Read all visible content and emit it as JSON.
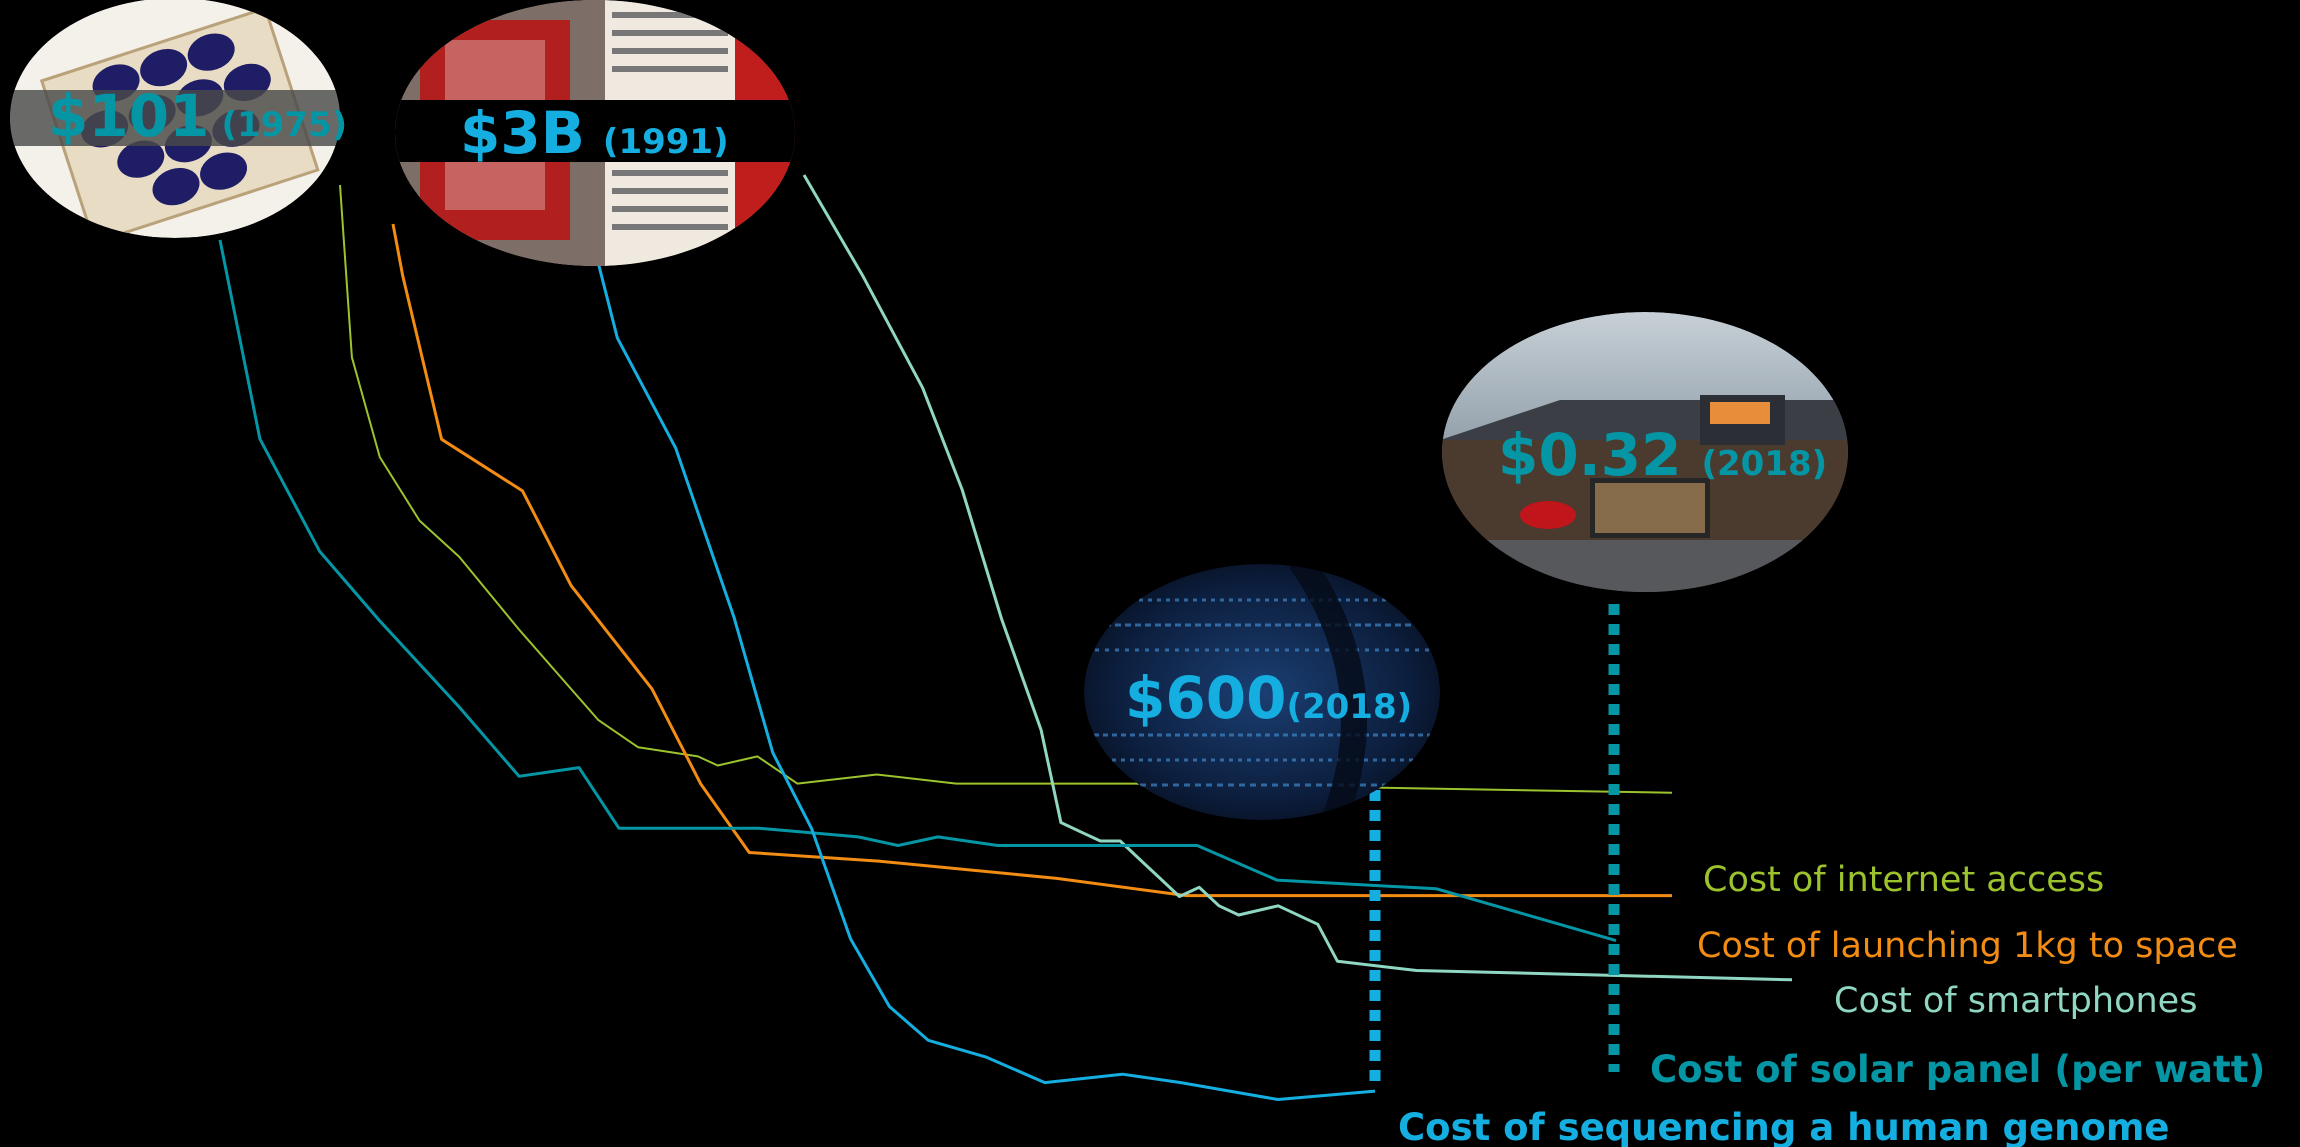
{
  "colors": {
    "internet": "#9cc32d",
    "launch": "#f28c13",
    "smartphone": "#8fd7c2",
    "solar": "#0596a6",
    "genome": "#15aee0",
    "background": "#000000"
  },
  "chart_data": {
    "type": "line",
    "title": "",
    "xlabel": "",
    "ylabel": "",
    "grid": false,
    "axes_shown": false,
    "note": "No axes or ticks are printed; values are relative cost levels as drawn (100 = starting level, 0 = bottom).",
    "series": [
      {
        "name": "Cost of internet access",
        "points": [
          [
            0,
            100
          ],
          [
            0.6,
            81
          ],
          [
            2,
            70
          ],
          [
            4,
            63
          ],
          [
            6,
            59
          ],
          [
            9,
            51
          ],
          [
            13,
            41
          ],
          [
            15,
            38
          ],
          [
            18,
            37
          ],
          [
            19,
            36
          ],
          [
            21,
            37
          ],
          [
            23,
            34
          ],
          [
            27,
            35
          ],
          [
            31,
            34
          ],
          [
            40,
            34
          ],
          [
            67,
            33
          ]
        ]
      },
      {
        "name": "Cost of launching 1kg to space",
        "points": [
          [
            0,
            100
          ],
          [
            0.6,
            94
          ],
          [
            3,
            75
          ],
          [
            8,
            69
          ],
          [
            11,
            58
          ],
          [
            16,
            46
          ],
          [
            19,
            35
          ],
          [
            22,
            27
          ],
          [
            30,
            26
          ],
          [
            41,
            24
          ],
          [
            49,
            22
          ],
          [
            59,
            22
          ],
          [
            79,
            22
          ]
        ]
      },
      {
        "name": "Cost of smartphones",
        "points": [
          [
            0,
            100
          ],
          [
            3,
            89
          ],
          [
            6,
            77
          ],
          [
            8,
            66
          ],
          [
            10,
            52
          ],
          [
            12,
            40
          ],
          [
            13,
            30
          ],
          [
            14,
            29
          ],
          [
            15,
            28
          ],
          [
            16,
            28
          ],
          [
            17,
            26
          ],
          [
            18,
            24
          ],
          [
            19,
            22
          ],
          [
            20,
            23
          ],
          [
            21,
            21
          ],
          [
            22,
            20
          ],
          [
            24,
            21
          ],
          [
            26,
            19
          ],
          [
            27,
            15
          ],
          [
            31,
            14
          ],
          [
            50,
            13
          ]
        ]
      },
      {
        "name": "Cost of solar panel (per watt)",
        "points": [
          [
            0,
            100
          ],
          [
            2,
            77
          ],
          [
            5,
            64
          ],
          [
            8,
            56
          ],
          [
            12,
            46
          ],
          [
            15,
            38
          ],
          [
            18,
            39
          ],
          [
            20,
            32
          ],
          [
            27,
            32
          ],
          [
            32,
            31
          ],
          [
            34,
            30
          ],
          [
            36,
            31
          ],
          [
            39,
            30
          ],
          [
            49,
            30
          ],
          [
            53,
            26
          ],
          [
            61,
            25
          ],
          [
            70,
            19
          ]
        ]
      },
      {
        "name": "Cost of sequencing a human genome",
        "points": [
          [
            0,
            100
          ],
          [
            1,
            91
          ],
          [
            4,
            78
          ],
          [
            7,
            58
          ],
          [
            9,
            42
          ],
          [
            11,
            33
          ],
          [
            13,
            20
          ],
          [
            15,
            12
          ],
          [
            17,
            8
          ],
          [
            20,
            6
          ],
          [
            23,
            3
          ],
          [
            27,
            4
          ],
          [
            30,
            3
          ],
          [
            35,
            1
          ],
          [
            40,
            2
          ]
        ]
      }
    ]
  },
  "labels": {
    "internet": "Cost of internet access",
    "launch": "Cost of launching 1kg to space",
    "smartphone": "Cost of smartphones",
    "solar": "Cost of solar panel (per watt)",
    "genome": "Cost of sequencing a human genome"
  },
  "callouts": {
    "solar_start": {
      "price": "$101",
      "year": "(1975)",
      "image": "solar-cells-photo"
    },
    "genome_start": {
      "price": "$3B",
      "year": "(1991)",
      "image": "sequencing-lab-photo"
    },
    "genome_end": {
      "price": "$600",
      "year": "(2018)",
      "image": "dna-sequence-photo"
    },
    "solar_end": {
      "price": "$0.32",
      "year": "(2018)",
      "image": "solar-roof-house-photo"
    }
  }
}
